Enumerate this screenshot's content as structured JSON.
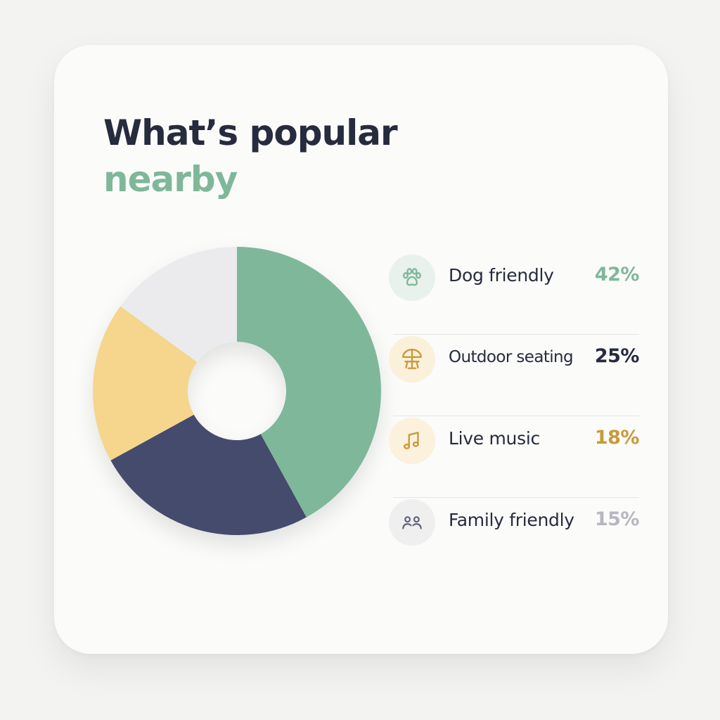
{
  "title": {
    "line1": "What’s popular",
    "line2": "nearby"
  },
  "colors": {
    "green": "#7fb79a",
    "navy": "#454b6c",
    "yellow": "#f6d58d",
    "grey": "#ebebed",
    "gold": "#c99a3a",
    "grey_text": "#b6b7c0"
  },
  "legend": [
    {
      "label": "Dog friendly",
      "pct": "42%",
      "icon": "paw-icon",
      "pct_color": "#7fb79a",
      "icon_bg": "#e9f1ec",
      "icon_color": "#7fb79a"
    },
    {
      "label": "Outdoor seating",
      "pct": "25%",
      "icon": "umbrella-table-icon",
      "pct_color": "#262b3d",
      "icon_bg": "#fbf0d9",
      "icon_color": "#c99a3a"
    },
    {
      "label": "Live music",
      "pct": "18%",
      "icon": "music-note-icon",
      "pct_color": "#c99a3a",
      "icon_bg": "#fbf1dc",
      "icon_color": "#c99a3a"
    },
    {
      "label": "Family friendly",
      "pct": "15%",
      "icon": "family-icon",
      "pct_color": "#b6b7c0",
      "icon_bg": "#efeff0",
      "icon_color": "#5a5f73"
    }
  ],
  "chart_data": {
    "type": "pie",
    "categories": [
      "Dog friendly",
      "Outdoor seating",
      "Live music",
      "Family friendly"
    ],
    "values": [
      42,
      25,
      18,
      15
    ],
    "colors": [
      "#7fb79a",
      "#454b6c",
      "#f6d58d",
      "#ebebed"
    ],
    "title": "What’s popular nearby",
    "legend_position": "right",
    "donut": true
  }
}
